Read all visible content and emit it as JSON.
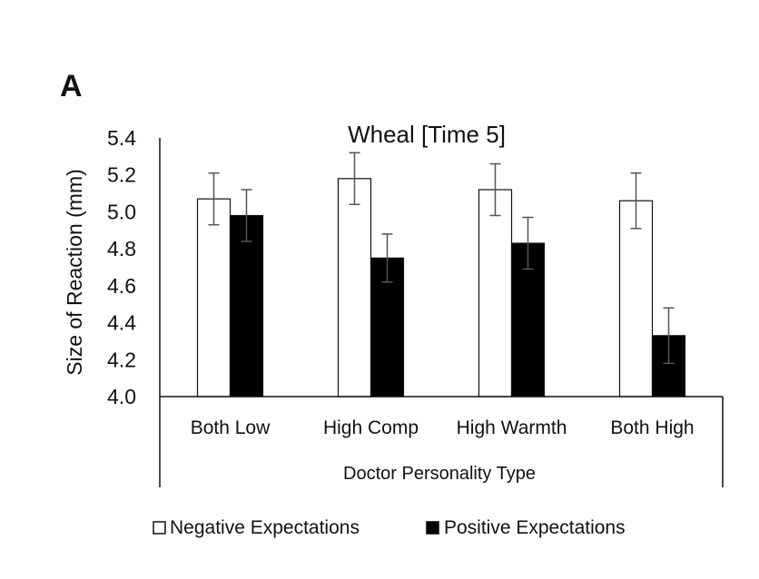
{
  "panel_label": "A",
  "chart_data": {
    "type": "bar",
    "title": "Wheal [Time 5]",
    "xlabel": "Doctor Personality Type",
    "ylabel": "Size of Reaction (mm)",
    "ylim": [
      4.0,
      5.4
    ],
    "yticks": [
      "4.0",
      "4.2",
      "4.4",
      "4.6",
      "4.8",
      "5.0",
      "5.2",
      "5.4"
    ],
    "categories": [
      "Both Low",
      "High Comp",
      "High Warmth",
      "Both High"
    ],
    "series": [
      {
        "name": "Negative Expectations",
        "color": "#ffffff",
        "values": [
          5.07,
          5.18,
          5.12,
          5.06
        ],
        "error": [
          0.14,
          0.14,
          0.14,
          0.15
        ]
      },
      {
        "name": "Positive Expectations",
        "color": "#000000",
        "values": [
          4.98,
          4.75,
          4.83,
          4.33
        ],
        "error": [
          0.14,
          0.13,
          0.14,
          0.15
        ]
      }
    ],
    "legend_position": "bottom",
    "grid": false
  }
}
